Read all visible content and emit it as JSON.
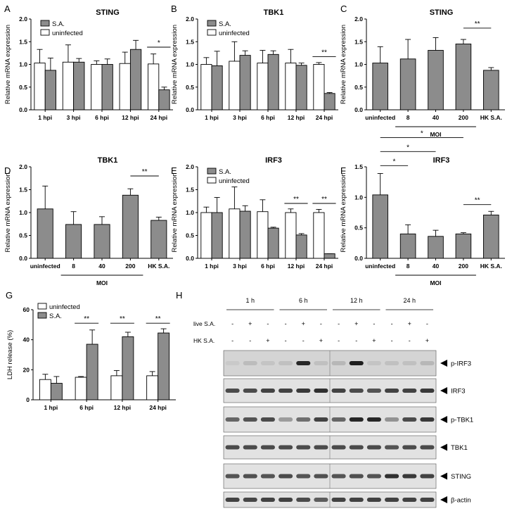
{
  "colors": {
    "gray_bar": "#8c8c8c",
    "white_bar": "#ffffff",
    "axis": "#000000"
  },
  "chart_data": [
    {
      "panel": "A",
      "type": "bar",
      "title": "STING",
      "ylabel": "Relative mRNA expression",
      "xlabel": "",
      "ylim": [
        0,
        2.0
      ],
      "yticks": [
        "0.0",
        "0.5",
        "1.0",
        "1.5",
        "2.0"
      ],
      "categories": [
        "1 hpi",
        "3 hpi",
        "6 hpi",
        "12 hpi",
        "24 hpi"
      ],
      "legend": [
        "S.A.",
        "uninfected"
      ],
      "series": [
        {
          "name": "uninfected",
          "color": "white",
          "values": [
            1.03,
            1.05,
            1.0,
            1.02,
            1.01
          ],
          "errors": [
            0.3,
            0.38,
            0.08,
            0.25,
            0.22
          ]
        },
        {
          "name": "S.A.",
          "color": "gray",
          "values": [
            0.87,
            1.05,
            1.0,
            1.33,
            0.44
          ],
          "errors": [
            0.27,
            0.08,
            0.12,
            0.2,
            0.06
          ]
        }
      ],
      "sig": [
        {
          "label": "*",
          "from": 4,
          "to": 4,
          "y": 1.38
        }
      ]
    },
    {
      "panel": "B",
      "type": "bar",
      "title": "TBK1",
      "ylabel": "Relative mRNA expression",
      "xlabel": "",
      "ylim": [
        0,
        2.0
      ],
      "yticks": [
        "0.0",
        "0.5",
        "1.0",
        "1.5",
        "2.0"
      ],
      "categories": [
        "1 hpi",
        "3 hpi",
        "6 hpi",
        "12 hpi",
        "24 hpi"
      ],
      "legend": [
        "S.A.",
        "uninfected"
      ],
      "series": [
        {
          "name": "uninfected",
          "color": "white",
          "values": [
            1.0,
            1.07,
            1.03,
            1.03,
            1.0
          ],
          "errors": [
            0.15,
            0.43,
            0.28,
            0.3,
            0.04
          ]
        },
        {
          "name": "S.A.",
          "color": "gray",
          "values": [
            0.97,
            1.2,
            1.22,
            0.98,
            0.36
          ],
          "errors": [
            0.32,
            0.1,
            0.08,
            0.05,
            0.02
          ]
        }
      ],
      "sig": [
        {
          "label": "**",
          "from": 4,
          "to": 4,
          "y": 1.17
        }
      ]
    },
    {
      "panel": "C",
      "type": "bar",
      "title": "STING",
      "ylabel": "Relative mRNA expression",
      "xlabel": "MOI",
      "ylim": [
        0,
        2.0
      ],
      "yticks": [
        "0.0",
        "0.5",
        "1.0",
        "1.5",
        "2.0"
      ],
      "categories": [
        "uninfected",
        "8",
        "40",
        "200",
        "HK S.A."
      ],
      "moi_span": [
        1,
        3
      ],
      "series": [
        {
          "name": "",
          "color": "gray",
          "values": [
            1.03,
            1.12,
            1.31,
            1.45,
            0.87
          ],
          "errors": [
            0.36,
            0.43,
            0.28,
            0.1,
            0.06
          ]
        }
      ],
      "sig": [
        {
          "label": "**",
          "from": 3,
          "to": 4,
          "y": 1.8
        }
      ]
    },
    {
      "panel": "D",
      "type": "bar",
      "title": "TBK1",
      "ylabel": "Relative mRNA expression",
      "xlabel": "MOI",
      "ylim": [
        0,
        2.0
      ],
      "yticks": [
        "0.0",
        "0.5",
        "1.0",
        "1.5",
        "2.0"
      ],
      "categories": [
        "uninfected",
        "8",
        "40",
        "200",
        "HK S.A."
      ],
      "moi_span": [
        1,
        3
      ],
      "series": [
        {
          "name": "",
          "color": "gray",
          "values": [
            1.08,
            0.74,
            0.74,
            1.38,
            0.83
          ],
          "errors": [
            0.5,
            0.28,
            0.17,
            0.14,
            0.07
          ]
        }
      ],
      "sig": [
        {
          "label": "**",
          "from": 3,
          "to": 4,
          "y": 1.8
        }
      ]
    },
    {
      "panel": "E",
      "type": "bar",
      "title": "IRF3",
      "ylabel": "Relative mRNA expression",
      "xlabel": "",
      "ylim": [
        0,
        2.0
      ],
      "yticks": [
        "0.0",
        "0.5",
        "1.0",
        "1.5",
        "2.0"
      ],
      "categories": [
        "1 hpi",
        "3 hpi",
        "6 hpi",
        "12 hpi",
        "24 hpi"
      ],
      "legend": [
        "S.A.",
        "uninfected"
      ],
      "series": [
        {
          "name": "uninfected",
          "color": "white",
          "values": [
            1.0,
            1.08,
            1.02,
            1.0,
            1.0
          ],
          "errors": [
            0.12,
            0.48,
            0.26,
            0.08,
            0.07
          ]
        },
        {
          "name": "S.A.",
          "color": "gray",
          "values": [
            1.0,
            1.03,
            0.66,
            0.51,
            0.1
          ],
          "errors": [
            0.33,
            0.12,
            0.02,
            0.03,
            0.0
          ]
        }
      ],
      "sig": [
        {
          "label": "**",
          "from": 3,
          "to": 3,
          "y": 1.2
        },
        {
          "label": "**",
          "from": 4,
          "to": 4,
          "y": 1.2
        }
      ]
    },
    {
      "panel": "F",
      "type": "bar",
      "title": "IRF3",
      "ylabel": "Relative mRNA expression",
      "xlabel": "MOI",
      "ylim": [
        0,
        1.5
      ],
      "yticks": [
        "0.0",
        "0.5",
        "1.0",
        "1.5"
      ],
      "categories": [
        "uninfected",
        "8",
        "40",
        "200",
        "HK S.A."
      ],
      "moi_span": [
        1,
        3
      ],
      "series": [
        {
          "name": "",
          "color": "gray",
          "values": [
            1.04,
            0.4,
            0.36,
            0.4,
            0.71
          ],
          "errors": [
            0.35,
            0.15,
            0.1,
            0.02,
            0.06
          ]
        }
      ],
      "sig": [
        {
          "label": "**",
          "from": 3,
          "to": 4,
          "y": 0.88
        },
        {
          "label": "*",
          "from": 0,
          "to": 1,
          "y": 1.52
        },
        {
          "label": "*",
          "from": 0,
          "to": 2,
          "y": 1.75
        },
        {
          "label": "*",
          "from": 0,
          "to": 3,
          "y": 1.98
        }
      ]
    },
    {
      "panel": "G",
      "type": "bar",
      "title": "",
      "ylabel": "LDH release (%)",
      "xlabel": "",
      "ylim": [
        0,
        60
      ],
      "yticks": [
        "0",
        "20",
        "40",
        "60"
      ],
      "categories": [
        "1 hpi",
        "6 hpi",
        "12 hpi",
        "24 hpi"
      ],
      "legend": [
        "uninfected",
        "S.A."
      ],
      "series": [
        {
          "name": "uninfected",
          "color": "white",
          "values": [
            13.5,
            15.0,
            16.0,
            16.0
          ],
          "errors": [
            3.5,
            0.5,
            3.5,
            2.8
          ]
        },
        {
          "name": "S.A.",
          "color": "gray",
          "values": [
            11.0,
            37.0,
            42.0,
            44.5
          ],
          "errors": [
            4.5,
            9.5,
            3.0,
            2.8
          ]
        }
      ],
      "sig": [
        {
          "label": "**",
          "from": 1,
          "to": 1,
          "y": 51
        },
        {
          "label": "**",
          "from": 2,
          "to": 2,
          "y": 51
        },
        {
          "label": "**",
          "from": 3,
          "to": 3,
          "y": 51
        }
      ]
    }
  ],
  "panel_labels": {
    "A": "A",
    "B": "B",
    "C": "C",
    "D": "D",
    "E": "E",
    "F": "F",
    "G": "G",
    "H": "H"
  },
  "blot": {
    "timepoints": [
      "1 h",
      "6 h",
      "12 h",
      "24 h"
    ],
    "row_labels": [
      "live S.A.",
      "HK S.A."
    ],
    "live_marks": [
      "-",
      "+",
      "-",
      "-",
      "+",
      "-",
      "-",
      "+",
      "-",
      "-",
      "+",
      "-"
    ],
    "hk_marks": [
      "-",
      "-",
      "+",
      "-",
      "-",
      "+",
      "-",
      "-",
      "+",
      "-",
      "-",
      "+"
    ],
    "proteins": [
      "p-IRF3",
      "IRF3",
      "p-TBK1",
      "TBK1",
      "STING",
      "β-actin"
    ]
  }
}
